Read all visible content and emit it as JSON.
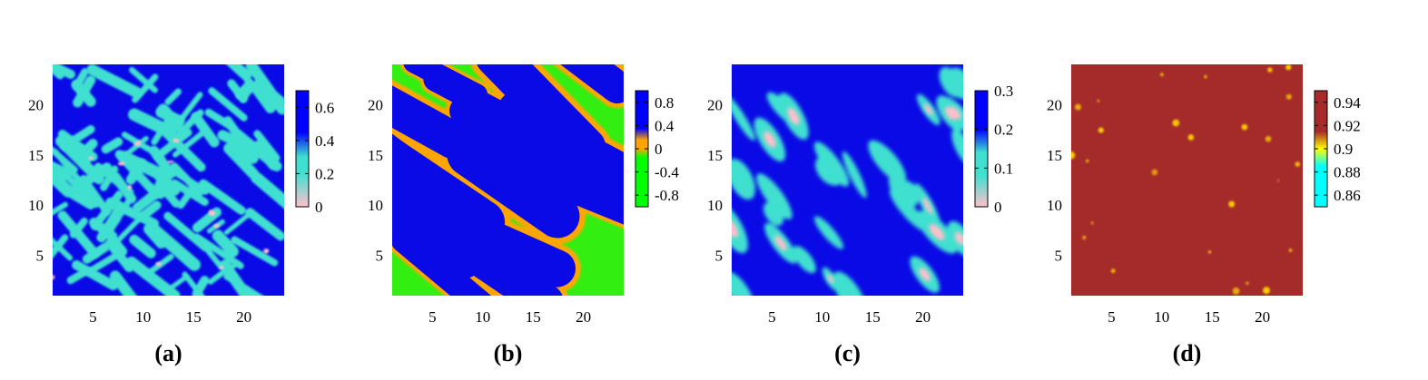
{
  "chart_data": [
    {
      "type": "heatmap",
      "label": "(a)",
      "x_ticks": [
        "5",
        "10",
        "15",
        "20"
      ],
      "y_ticks": [
        "5",
        "10",
        "15",
        "20"
      ],
      "xlim": [
        1,
        24
      ],
      "ylim": [
        1,
        24
      ],
      "colorbar": {
        "ticks": [
          "0",
          "0.2",
          "0.4",
          "0.6"
        ],
        "tick_values": [
          0,
          0.2,
          0.4,
          0.6
        ],
        "range": [
          0,
          0.7
        ],
        "stops": [
          [
            0,
            "#ffc0cb"
          ],
          [
            0.2,
            "#40e0d0"
          ],
          [
            0.3,
            "#40e0d0"
          ],
          [
            0.45,
            "#0000ff"
          ],
          [
            0.7,
            "#0000ff"
          ]
        ]
      },
      "palette": {
        "background": "#0a0ae6",
        "feature": "#40e0d0",
        "core": "#ffc0cb"
      }
    },
    {
      "type": "heatmap",
      "label": "(b)",
      "x_ticks": [
        "5",
        "10",
        "15",
        "20"
      ],
      "y_ticks": [
        "5",
        "10",
        "15",
        "20"
      ],
      "xlim": [
        1,
        24
      ],
      "ylim": [
        1,
        24
      ],
      "colorbar": {
        "ticks": [
          "0.8",
          "0.4",
          "0",
          "-0.4",
          "-0.8"
        ],
        "tick_values": [
          0.8,
          0.4,
          0,
          -0.4,
          -0.8
        ],
        "range": [
          -1,
          1
        ],
        "stops": [
          [
            -1,
            "#00ff00"
          ],
          [
            -0.15,
            "#00ff00"
          ],
          [
            0,
            "#ffa500"
          ],
          [
            0.15,
            "#ffa500"
          ],
          [
            0.35,
            "#0000ff"
          ],
          [
            1,
            "#0000ff"
          ]
        ]
      },
      "palette": {
        "background": "#33ee11",
        "feature": "#0a0ae6",
        "boundary": "#ffa500"
      }
    },
    {
      "type": "heatmap",
      "label": "(c)",
      "x_ticks": [
        "5",
        "10",
        "15",
        "20"
      ],
      "y_ticks": [
        "5",
        "10",
        "15",
        "20"
      ],
      "xlim": [
        1,
        24
      ],
      "ylim": [
        1,
        24
      ],
      "colorbar": {
        "ticks": [
          "0",
          "0.1",
          "0.2",
          "0.3"
        ],
        "tick_values": [
          0,
          0.1,
          0.2,
          0.3
        ],
        "range": [
          0,
          0.3
        ],
        "stops": [
          [
            0,
            "#ffc0cb"
          ],
          [
            0.08,
            "#40e0d0"
          ],
          [
            0.14,
            "#40e0d0"
          ],
          [
            0.2,
            "#0000ff"
          ],
          [
            0.3,
            "#0000ff"
          ]
        ]
      },
      "palette": {
        "background": "#0a0ae6",
        "feature": "#40e0d0",
        "core": "#ffc0cb"
      }
    },
    {
      "type": "heatmap",
      "label": "(d)",
      "x_ticks": [
        "5",
        "10",
        "15",
        "20"
      ],
      "y_ticks": [
        "5",
        "10",
        "15",
        "20"
      ],
      "xlim": [
        1,
        24
      ],
      "ylim": [
        1,
        24
      ],
      "colorbar": {
        "ticks": [
          "0.94",
          "0.92",
          "0.9",
          "0.88",
          "0.86"
        ],
        "tick_values": [
          0.94,
          0.92,
          0.9,
          0.88,
          0.86
        ],
        "range": [
          0.85,
          0.95
        ],
        "stops": [
          [
            0.85,
            "#00ffff"
          ],
          [
            0.885,
            "#00ffff"
          ],
          [
            0.9,
            "#ffff00"
          ],
          [
            0.915,
            "#a52a2a"
          ],
          [
            0.95,
            "#a52a2a"
          ]
        ]
      },
      "palette": {
        "background": "#a52a2a",
        "spot": "#ffd700"
      }
    }
  ]
}
